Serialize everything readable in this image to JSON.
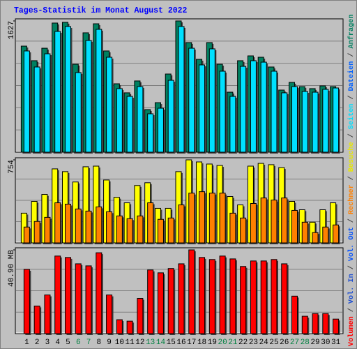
{
  "title": "Tages-Statistik im Monat August 2022",
  "side_legend": {
    "separator": "/",
    "extra": [
      {
        "name": "Vol. In",
        "color": "#2050d0"
      },
      {
        "name": "Vol. Out",
        "color": "#0050ff"
      },
      {
        "name": "Dateien",
        "color": "#0060ff"
      }
    ]
  },
  "chart_data": [
    {
      "type": "bar",
      "ylim": [
        0,
        1627
      ],
      "yticks": [
        1627
      ],
      "grid": true,
      "series": [
        {
          "name": "Anfragen",
          "color": "#008060",
          "values": [
            1315,
            1134,
            1289,
            1601,
            1610,
            1090,
            1480,
            1592,
            1255,
            848,
            736,
            883,
            528,
            614,
            969,
            1627,
            1359,
            1151,
            1359,
            1090,
            744,
            1134,
            1194,
            1177,
            1056,
            770,
            865,
            813,
            788,
            822,
            813
          ]
        },
        {
          "name": "Seiten",
          "color": "#00e0ff",
          "values": [
            1255,
            1056,
            1220,
            1497,
            1558,
            987,
            1385,
            1523,
            1177,
            788,
            692,
            813,
            476,
            545,
            891,
            1558,
            1289,
            1082,
            1281,
            1004,
            692,
            1064,
            1134,
            1116,
            1004,
            736,
            813,
            753,
            744,
            779,
            796
          ]
        }
      ]
    },
    {
      "type": "bar",
      "ylim": [
        0,
        754
      ],
      "yticks": [
        754
      ],
      "grid": true,
      "series": [
        {
          "name": "Besuche",
          "color": "#ffff00",
          "values": [
            270,
            377,
            440,
            672,
            647,
            553,
            691,
            697,
            571,
            414,
            364,
            521,
            546,
            314,
            314,
            647,
            754,
            735,
            716,
            703,
            421,
            345,
            697,
            722,
            710,
            684,
            377,
            301,
            188,
            301,
            364
          ]
        },
        {
          "name": "Rechner",
          "color": "#ff8000",
          "values": [
            144,
            195,
            232,
            364,
            352,
            308,
            289,
            327,
            283,
            245,
            220,
            245,
            364,
            214,
            226,
            345,
            452,
            465,
            452,
            452,
            270,
            226,
            358,
            408,
            389,
            408,
            295,
            188,
            94,
            144,
            163
          ]
        }
      ]
    },
    {
      "type": "bar",
      "ylim": [
        0,
        40.9
      ],
      "yticks": [
        {
          "value": 40.9,
          "label": "40.90 MB"
        }
      ],
      "grid": true,
      "categories": [
        "1",
        "2",
        "3",
        "4",
        "5",
        "6",
        "7",
        "8",
        "9",
        "10",
        "11",
        "12",
        "13",
        "14",
        "15",
        "16",
        "17",
        "18",
        "19",
        "20",
        "21",
        "22",
        "23",
        "24",
        "25",
        "26",
        "27",
        "28",
        "29",
        "30",
        "31"
      ],
      "category_colors": [
        "#000",
        "#000",
        "#000",
        "#000",
        "#000",
        "#008040",
        "#008040",
        "#000",
        "#000",
        "#000",
        "#000",
        "#000",
        "#008040",
        "#008040",
        "#000",
        "#000",
        "#000",
        "#000",
        "#000",
        "#008040",
        "#008040",
        "#000",
        "#000",
        "#000",
        "#000",
        "#000",
        "#008040",
        "#008040",
        "#000",
        "#000",
        "#000"
      ],
      "series": [
        {
          "name": "Volumen",
          "color": "#ff0000",
          "values": [
            31.4,
            13.5,
            18.9,
            37.9,
            37.2,
            34.1,
            33.1,
            39.5,
            18.9,
            6.8,
            6.1,
            17.2,
            31.1,
            29.7,
            31.8,
            34.1,
            40.9,
            37.2,
            36.2,
            37.9,
            36.5,
            32.8,
            35.5,
            35.5,
            36.2,
            34.1,
            18.3,
            8.5,
            9.8,
            9.8,
            7.1
          ]
        }
      ]
    }
  ]
}
